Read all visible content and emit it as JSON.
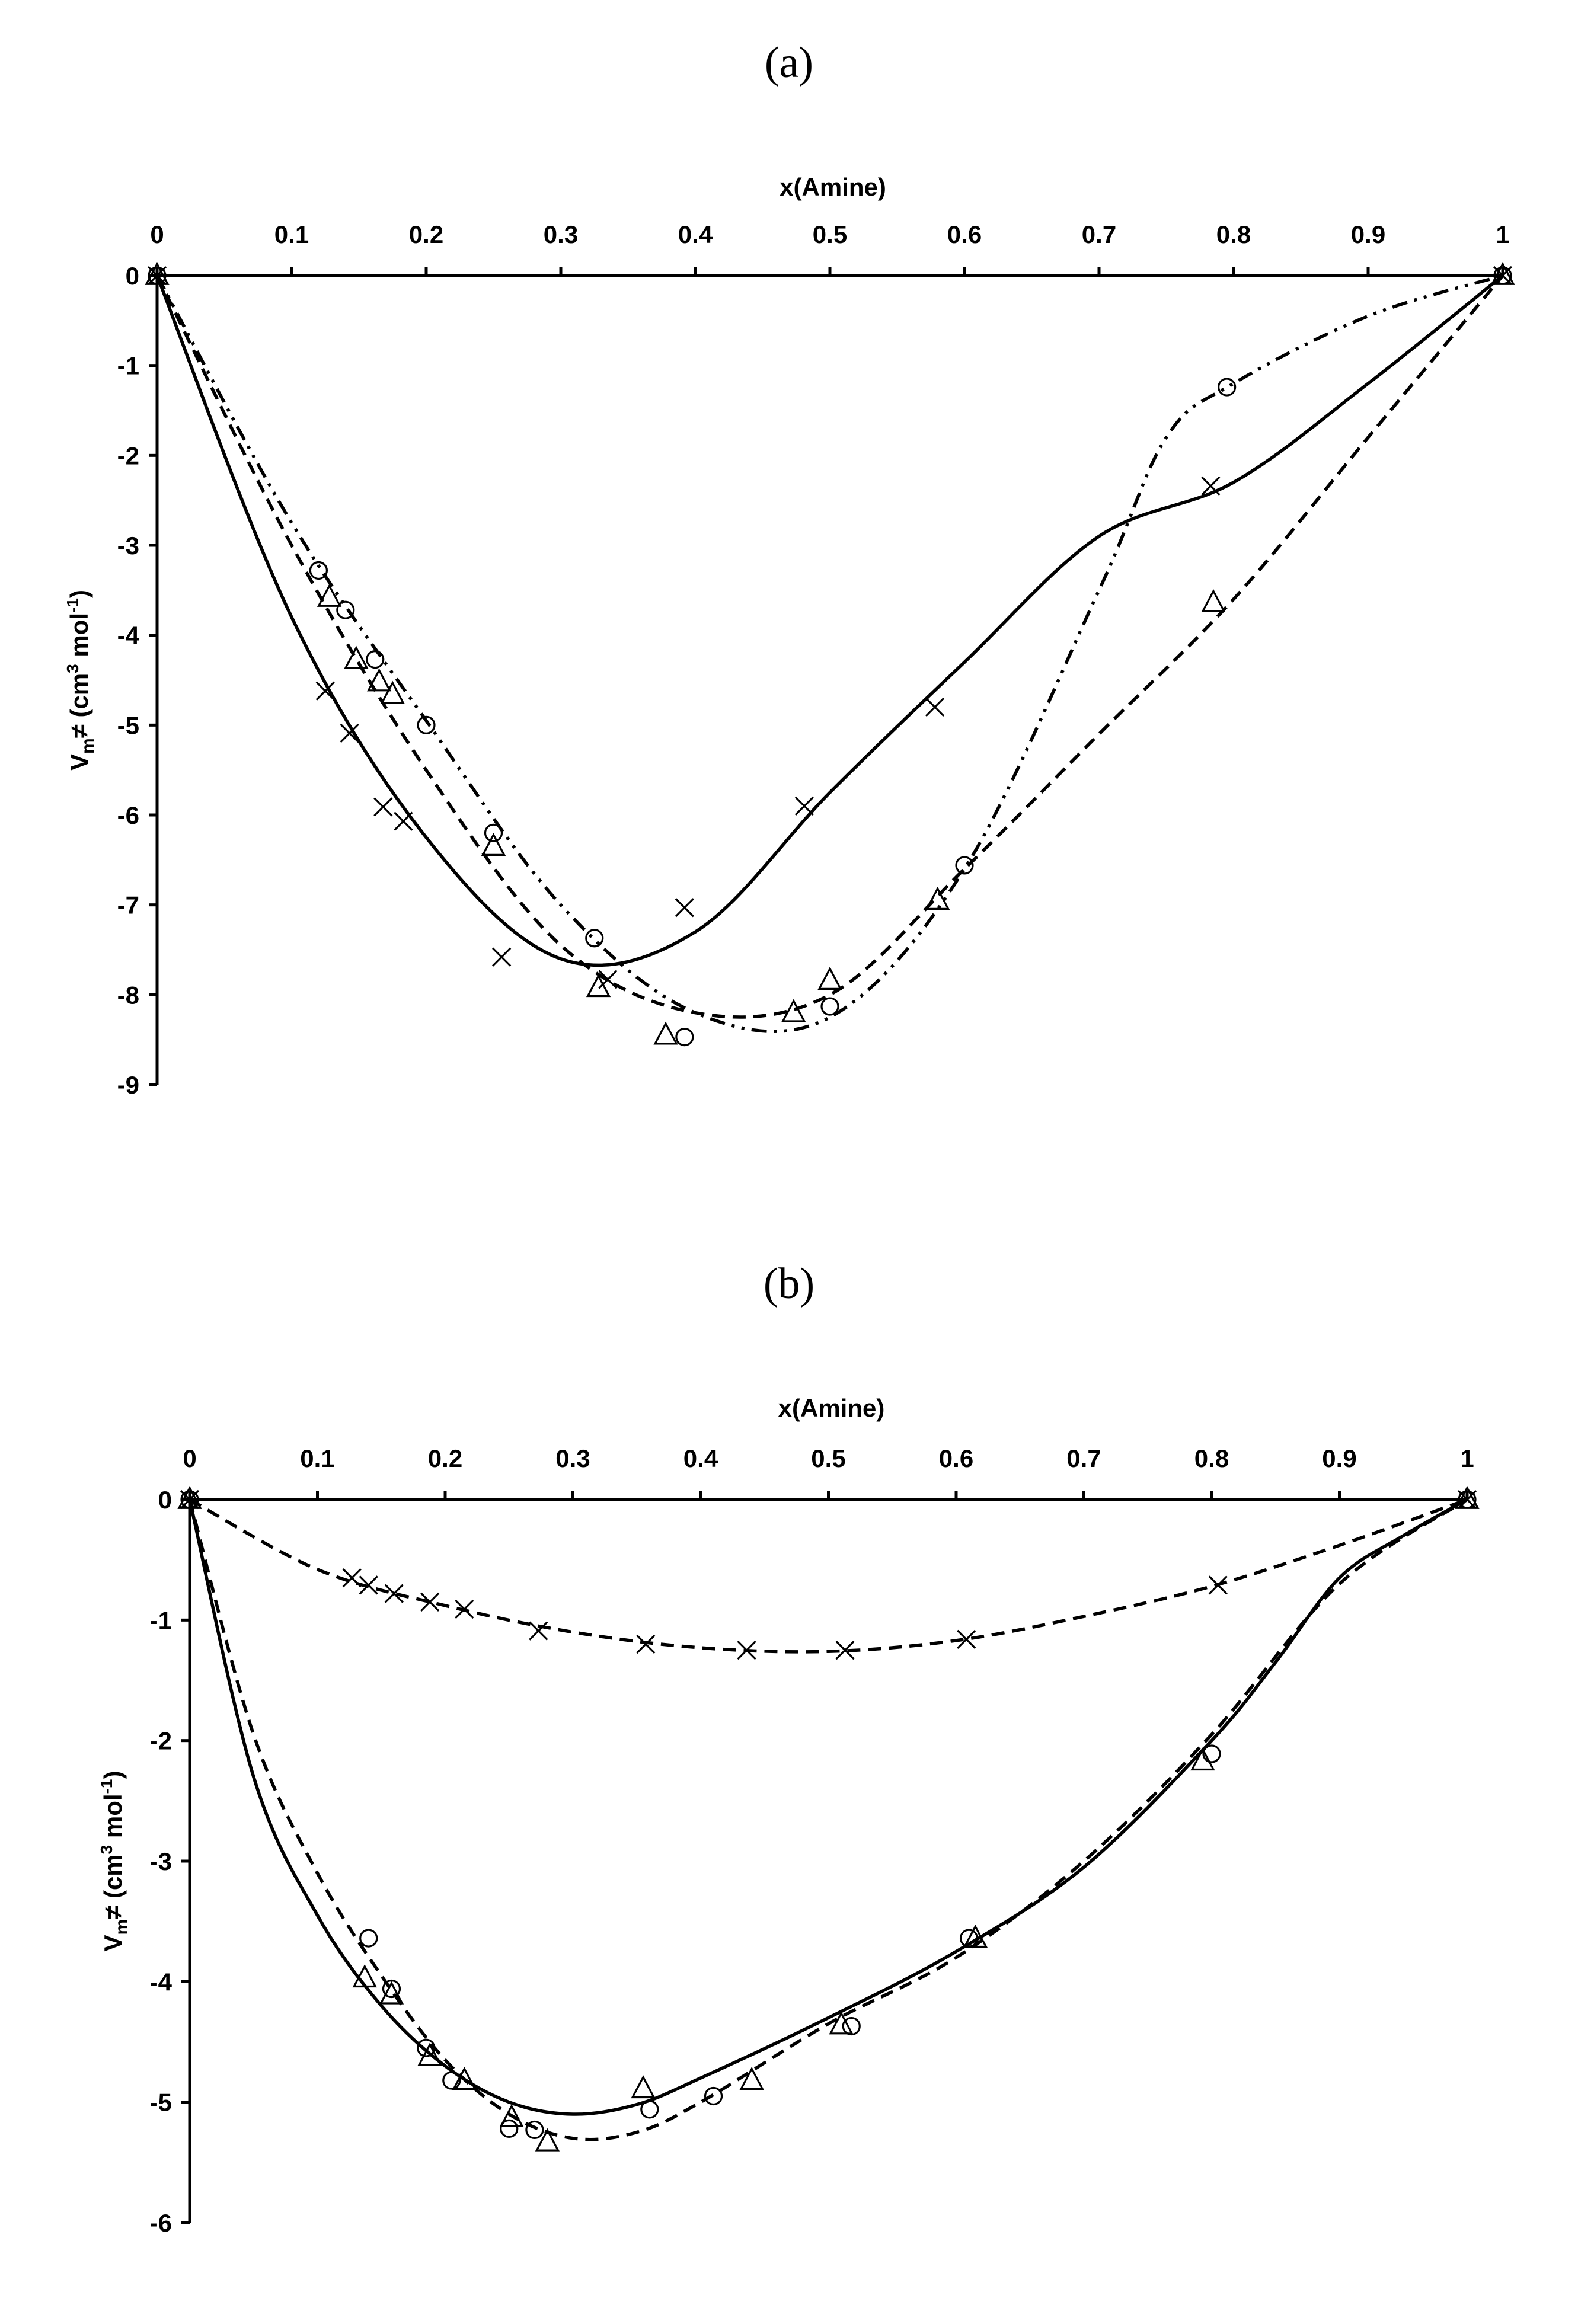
{
  "chart_data": [
    {
      "type": "scatter",
      "panel_label": "(a)",
      "xlabel": "x(Amine)",
      "ylabel_main": "V",
      "ylabel_sub": "m",
      "ylabel_rest": "≠ (cm",
      "ylabel_sup1": "3",
      "ylabel_mid": " mol",
      "ylabel_sup2": "-1",
      "ylabel_end": ")",
      "xlim": [
        0,
        1
      ],
      "ylim": [
        -9,
        0
      ],
      "x_ticks": [
        "0",
        "0.1",
        "0.2",
        "0.3",
        "0.4",
        "0.5",
        "0.6",
        "0.7",
        "0.8",
        "0.9",
        "1"
      ],
      "y_ticks": [
        "0",
        "-1",
        "-2",
        "-3",
        "-4",
        "-5",
        "-6",
        "-7",
        "-8",
        "-9"
      ],
      "series": [
        {
          "name": "cross",
          "marker": "x",
          "line": "solid",
          "x": [
            0,
            0.125,
            0.143,
            0.168,
            0.183,
            0.256,
            0.335,
            0.392,
            0.481,
            0.578,
            0.783,
            1.0
          ],
          "y": [
            0,
            -4.62,
            -5.09,
            -5.91,
            -6.07,
            -7.58,
            -7.83,
            -7.03,
            -5.9,
            -4.8,
            -2.34,
            0
          ],
          "fit_x": [
            0,
            0.1,
            0.2,
            0.3,
            0.4,
            0.5,
            0.6,
            0.7,
            0.8,
            0.9,
            1.0
          ],
          "fit_y": [
            0,
            -3.8,
            -6.25,
            -7.6,
            -7.3,
            -5.75,
            -4.3,
            -2.9,
            -2.3,
            -1.2,
            0
          ]
        },
        {
          "name": "circle",
          "marker": "circle",
          "line": "dash-dot-dot",
          "x": [
            0,
            0.12,
            0.14,
            0.162,
            0.2,
            0.25,
            0.325,
            0.392,
            0.5,
            0.6,
            0.795,
            1.0
          ],
          "y": [
            0,
            -3.28,
            -3.72,
            -4.27,
            -5.0,
            -6.2,
            -7.37,
            -8.47,
            -8.13,
            -6.56,
            -1.24,
            0
          ],
          "fit_x": [
            0,
            0.1,
            0.2,
            0.3,
            0.4,
            0.5,
            0.6,
            0.7,
            0.75,
            0.8,
            0.9,
            1.0
          ],
          "fit_y": [
            0,
            -2.75,
            -4.95,
            -7.0,
            -8.2,
            -8.25,
            -6.6,
            -3.5,
            -1.8,
            -1.2,
            -0.45,
            0
          ]
        },
        {
          "name": "triangle",
          "marker": "triangle",
          "line": "dashed",
          "x": [
            0,
            0.128,
            0.148,
            0.165,
            0.175,
            0.25,
            0.328,
            0.378,
            0.473,
            0.5,
            0.58,
            0.785,
            1.0
          ],
          "y": [
            0,
            -3.58,
            -4.27,
            -4.52,
            -4.66,
            -6.35,
            -7.92,
            -8.45,
            -8.2,
            -7.84,
            -6.95,
            -3.64,
            0
          ],
          "fit_x": [
            0,
            0.1,
            0.2,
            0.3,
            0.4,
            0.5,
            0.6,
            0.7,
            0.8,
            0.9,
            1.0
          ],
          "fit_y": [
            0,
            -3.0,
            -5.5,
            -7.45,
            -8.2,
            -8.0,
            -6.6,
            -5.1,
            -3.6,
            -1.8,
            0
          ]
        }
      ]
    },
    {
      "type": "scatter",
      "panel_label": "(b)",
      "xlabel": "x(Amine)",
      "ylabel_main": "V",
      "ylabel_sub": "m",
      "ylabel_rest": "≠ (cm",
      "ylabel_sup1": "3",
      "ylabel_mid": " mol",
      "ylabel_sup2": "-1",
      "ylabel_end": ")",
      "xlim": [
        0,
        1
      ],
      "ylim": [
        -6,
        0
      ],
      "x_ticks": [
        "0",
        "0.1",
        "0.2",
        "0.3",
        "0.4",
        "0.5",
        "0.6",
        "0.7",
        "0.8",
        "0.9",
        "1"
      ],
      "y_ticks": [
        "0",
        "-1",
        "-2",
        "-3",
        "-4",
        "-5",
        "-6"
      ],
      "series": [
        {
          "name": "cross",
          "marker": "x",
          "line": "dashed",
          "x": [
            0,
            0.127,
            0.14,
            0.16,
            0.188,
            0.215,
            0.273,
            0.357,
            0.436,
            0.513,
            0.608,
            0.805,
            1.0
          ],
          "y": [
            0,
            -0.65,
            -0.71,
            -0.78,
            -0.85,
            -0.91,
            -1.09,
            -1.2,
            -1.25,
            -1.25,
            -1.16,
            -0.71,
            0
          ],
          "fit_x": [
            0,
            0.1,
            0.2,
            0.3,
            0.4,
            0.5,
            0.6,
            0.7,
            0.8,
            0.9,
            1.0
          ],
          "fit_y": [
            0,
            -0.58,
            -0.88,
            -1.1,
            -1.23,
            -1.26,
            -1.17,
            -0.97,
            -0.72,
            -0.38,
            0
          ]
        },
        {
          "name": "circle",
          "marker": "circle",
          "line": "dashed",
          "x": [
            0,
            0.14,
            0.158,
            0.185,
            0.205,
            0.25,
            0.27,
            0.36,
            0.41,
            0.518,
            0.61,
            0.8,
            1.0
          ],
          "y": [
            0,
            -3.64,
            -4.06,
            -4.55,
            -4.82,
            -5.22,
            -5.23,
            -5.06,
            -4.95,
            -4.37,
            -3.64,
            -2.11,
            0
          ],
          "fit_x": [
            0,
            0.05,
            0.1,
            0.15,
            0.2,
            0.25,
            0.3,
            0.35,
            0.4,
            0.5,
            0.6,
            0.7,
            0.8,
            0.9,
            1.0
          ],
          "fit_y": [
            0,
            -1.95,
            -3.1,
            -3.95,
            -4.65,
            -5.1,
            -5.3,
            -5.25,
            -5.0,
            -4.35,
            -3.8,
            -3.0,
            -1.95,
            -0.7,
            0
          ]
        },
        {
          "name": "triangle",
          "marker": "triangle",
          "line": "solid",
          "x": [
            0,
            0.137,
            0.158,
            0.188,
            0.215,
            0.252,
            0.28,
            0.355,
            0.44,
            0.51,
            0.615,
            0.793,
            1.0
          ],
          "y": [
            0,
            -3.97,
            -4.11,
            -4.62,
            -4.82,
            -5.13,
            -5.33,
            -4.89,
            -4.82,
            -4.36,
            -3.64,
            -2.17,
            0
          ],
          "fit_x": [
            0,
            0.05,
            0.1,
            0.15,
            0.2,
            0.25,
            0.3,
            0.35,
            0.4,
            0.5,
            0.6,
            0.7,
            0.8,
            0.85,
            0.9,
            0.95,
            1.0
          ],
          "fit_y": [
            0,
            -2.3,
            -3.45,
            -4.2,
            -4.7,
            -5.0,
            -5.1,
            -5.02,
            -4.8,
            -4.3,
            -3.75,
            -3.05,
            -2.0,
            -1.35,
            -0.65,
            -0.3,
            0
          ]
        }
      ]
    }
  ]
}
